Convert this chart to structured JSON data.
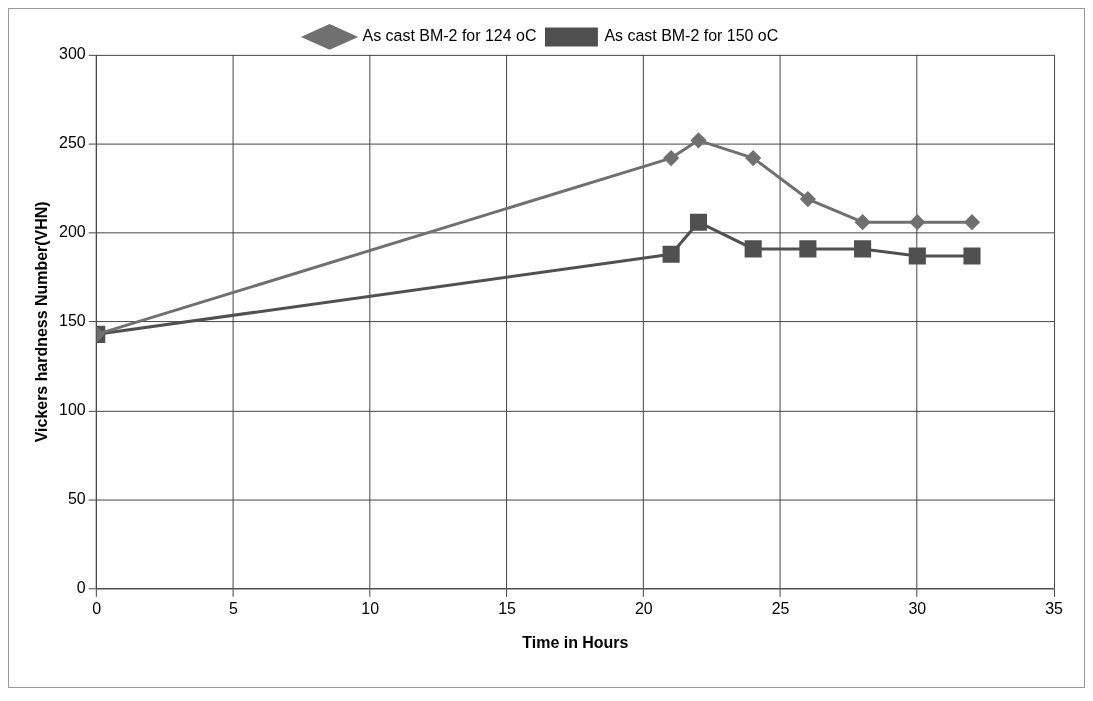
{
  "chart_data": {
    "type": "line",
    "xlabel": "Time in Hours",
    "ylabel": "Vickers hardness Number(VHN)",
    "xlim": [
      0,
      35
    ],
    "xticks": [
      0,
      5,
      10,
      15,
      20,
      25,
      30,
      35
    ],
    "ylim": [
      0,
      300
    ],
    "yticks": [
      0,
      50,
      100,
      150,
      200,
      250,
      300
    ],
    "grid": true,
    "legend": "top",
    "line_style": "solid",
    "series": [
      {
        "name": "As cast BM-2 for 124 oC",
        "color": "#707070",
        "marker": "diamond",
        "x": [
          0,
          21,
          22,
          24,
          26,
          28,
          30,
          32
        ],
        "values": [
          143,
          242,
          252,
          242,
          219,
          206,
          206,
          206
        ]
      },
      {
        "name": "As cast BM-2 for 150 oC",
        "color": "#505050",
        "marker": "square",
        "x": [
          0,
          21,
          22,
          24,
          26,
          28,
          30,
          32
        ],
        "values": [
          143,
          188,
          206,
          191,
          191,
          191,
          187,
          187
        ]
      }
    ]
  }
}
